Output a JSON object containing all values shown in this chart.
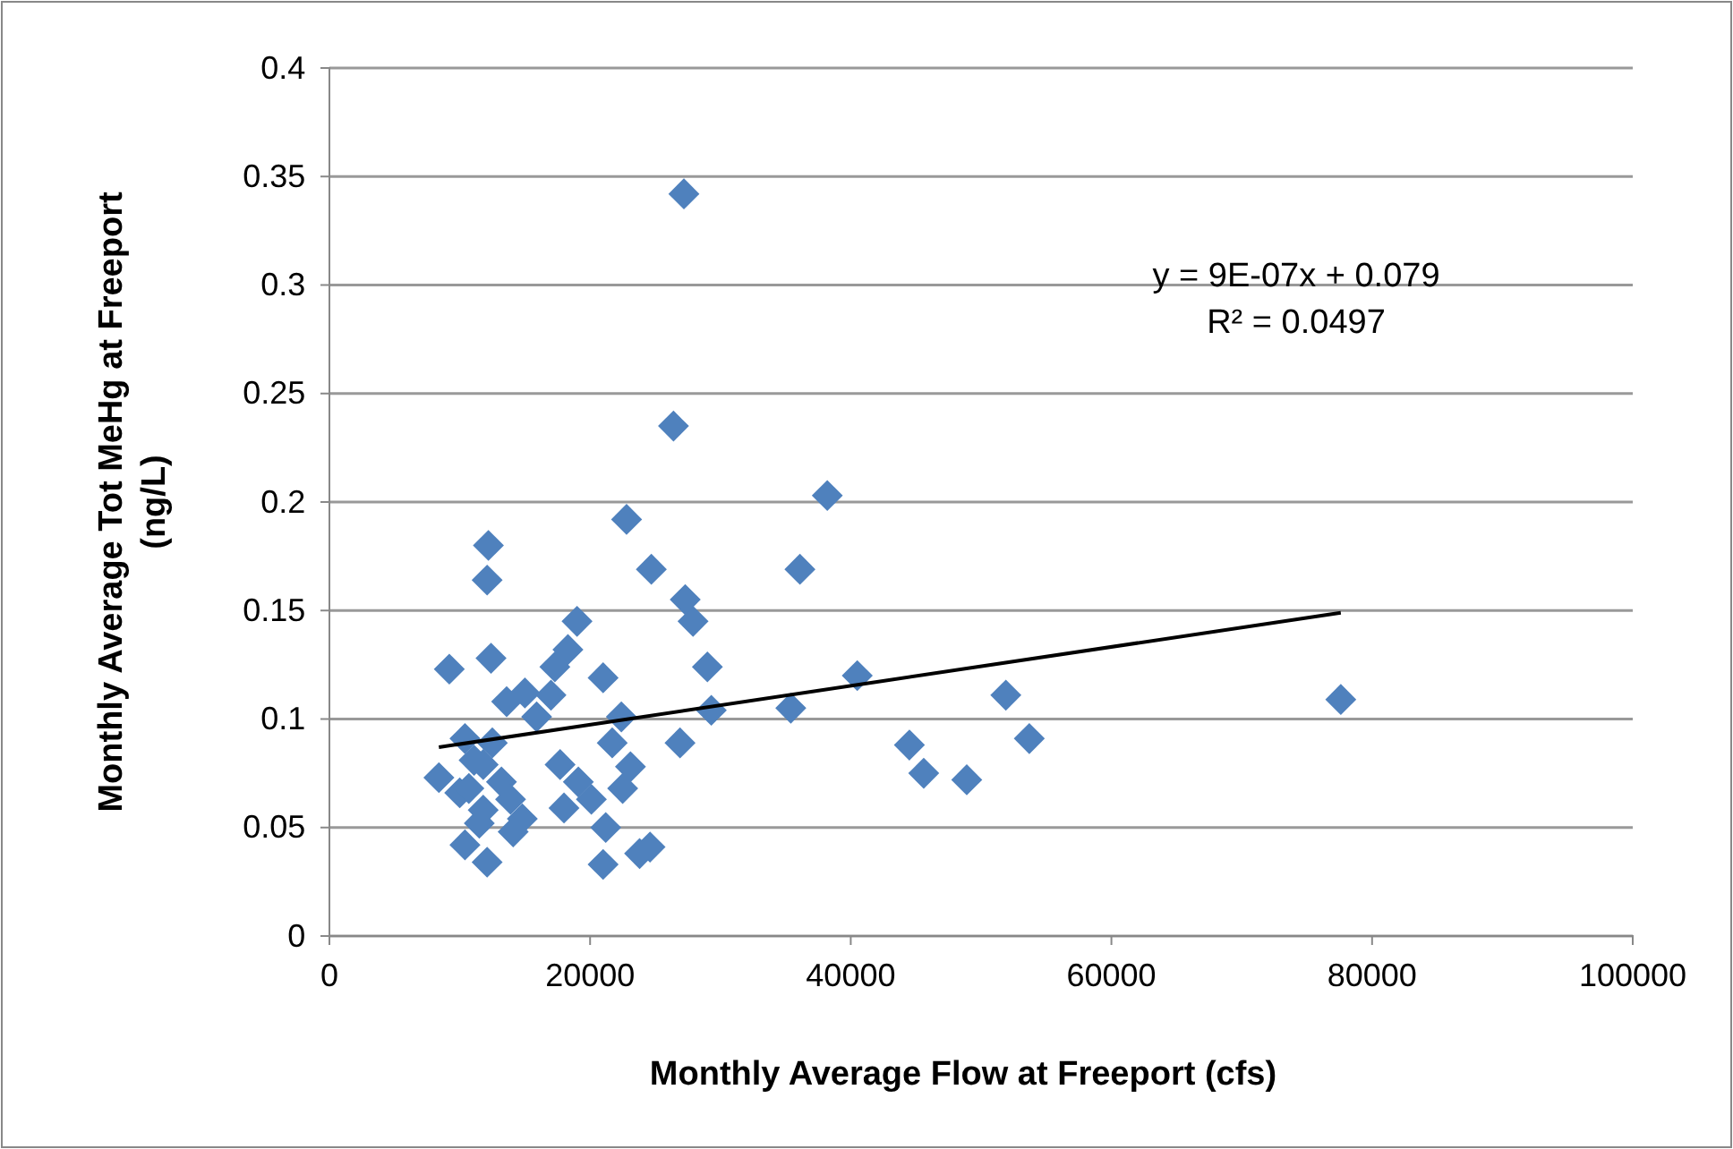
{
  "chart_data": {
    "type": "scatter",
    "xlabel": "Monthly Average Flow at Freeport (cfs)",
    "ylabel": "Monthly Average Tot MeHg at Freeport (ng/L)",
    "xlim": [
      0,
      100000
    ],
    "xticks": [
      0,
      20000,
      40000,
      60000,
      80000,
      100000
    ],
    "ylim": [
      0,
      0.4
    ],
    "yticks": [
      0,
      0.05,
      0.1,
      0.15,
      0.2,
      0.25,
      0.3,
      0.35,
      0.4
    ],
    "grid": "y",
    "marker": "diamond",
    "annotations": [
      "y = 9E-07x + 0.079",
      "R² = 0.0497"
    ],
    "series": [
      {
        "color": "#4f81bd",
        "x": [
          9200,
          12400,
          19000,
          18300,
          17300,
          13600,
          15000,
          17000,
          21000,
          22400,
          21700,
          26900,
          29000,
          27900,
          29300,
          15900,
          10400,
          8400,
          10000,
          11800,
          13200,
          13900,
          11800,
          10400,
          12100,
          14100,
          14800,
          17700,
          19100,
          20100,
          18000,
          21200,
          21000,
          23100,
          22500,
          23800,
          24600,
          12200,
          12100,
          22800,
          26400,
          27200,
          24700,
          27300,
          38200,
          36100,
          35400,
          40500,
          44500,
          45600,
          48900,
          51900,
          53700,
          77600,
          11100,
          10700,
          12500,
          11500
        ],
        "values": [
          0.123,
          0.128,
          0.145,
          0.132,
          0.124,
          0.108,
          0.112,
          0.111,
          0.119,
          0.101,
          0.089,
          0.089,
          0.124,
          0.145,
          0.104,
          0.101,
          0.091,
          0.073,
          0.066,
          0.079,
          0.071,
          0.063,
          0.058,
          0.042,
          0.034,
          0.048,
          0.054,
          0.079,
          0.071,
          0.063,
          0.059,
          0.05,
          0.033,
          0.078,
          0.068,
          0.038,
          0.041,
          0.18,
          0.164,
          0.192,
          0.235,
          0.342,
          0.169,
          0.155,
          0.203,
          0.169,
          0.105,
          0.12,
          0.088,
          0.075,
          0.072,
          0.111,
          0.091,
          0.109,
          0.081,
          0.068,
          0.089,
          0.052
        ]
      },
      {
        "type": "line",
        "color": "#000000",
        "x": [
          8400,
          77600
        ],
        "values": [
          0.087,
          0.149
        ],
        "line_style": "solid",
        "marker": "none"
      }
    ]
  }
}
